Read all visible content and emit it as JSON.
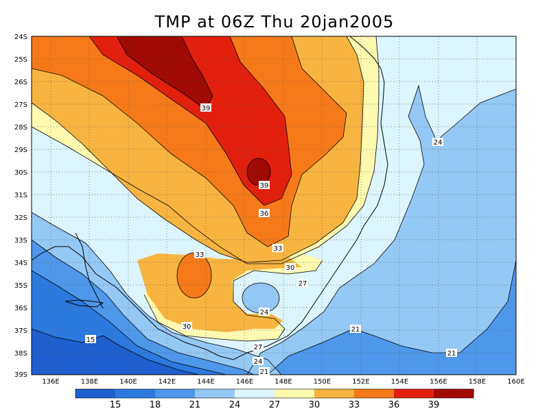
{
  "title": "TMP at 06Z Thu 20jan2005",
  "map": {
    "lat_labels": [
      "24S",
      "25S",
      "26S",
      "27S",
      "28S",
      "29S",
      "30S",
      "31S",
      "32S",
      "33S",
      "34S",
      "35S",
      "36S",
      "37S",
      "38S",
      "39S"
    ],
    "lon_labels": [
      "136E",
      "138E",
      "140E",
      "142E",
      "144E",
      "146E",
      "148E",
      "150E",
      "152E",
      "154E",
      "156E",
      "158E",
      "160E"
    ],
    "contour_labels": [
      {
        "text": "39"
      },
      {
        "text": "39"
      },
      {
        "text": "36"
      },
      {
        "text": "33"
      },
      {
        "text": "33"
      },
      {
        "text": "30"
      },
      {
        "text": "27"
      },
      {
        "text": "24"
      },
      {
        "text": "24"
      },
      {
        "text": "30"
      },
      {
        "text": "27"
      },
      {
        "text": "24"
      },
      {
        "text": "21"
      },
      {
        "text": "21"
      },
      {
        "text": "21"
      },
      {
        "text": "15"
      }
    ]
  },
  "legend": {
    "colors": [
      "#1f5fd0",
      "#2c7ae0",
      "#4f97ea",
      "#94c8f5",
      "#dcf5ff",
      "#fffab0",
      "#f8b440",
      "#f77a1a",
      "#e3200e",
      "#a00a04"
    ],
    "labels": [
      "15",
      "18",
      "21",
      "24",
      "27",
      "30",
      "33",
      "36",
      "39"
    ]
  }
}
